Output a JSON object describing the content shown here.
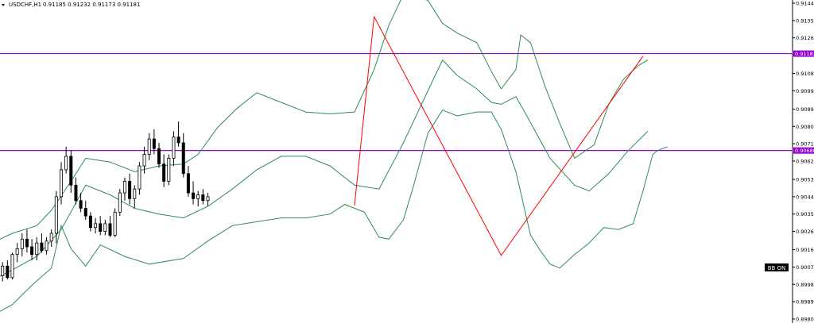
{
  "header": {
    "symbol": "USDCHF,H1",
    "ohlc": "0.91185 0.91232 0.91173 0.91181"
  },
  "bb_label": "BB ON",
  "colors": {
    "background": "#ffffff",
    "bullish_body": "#ffffff",
    "bearish_body": "#000000",
    "wick": "#000000",
    "bollinger": "#2e8b57",
    "zigzag": "#ff0000",
    "horizontal_line": "#9400d3",
    "tag_bg": "#9400d3",
    "bb_bg": "#000000"
  },
  "chart_data": {
    "type": "candlestick",
    "symbol": "USDCHF",
    "timeframe": "H1",
    "ylim": [
      0.89805,
      0.91445
    ],
    "ytick_labels": [
      "0.91445",
      "0.91355",
      "0.91265",
      "0.91180",
      "0.91080",
      "0.90990",
      "0.90895",
      "0.90805",
      "0.90715",
      "0.90625",
      "0.90530",
      "0.90440",
      "0.90350",
      "0.90260",
      "0.90165",
      "0.90075",
      "0.89985",
      "0.89895",
      "0.89805"
    ],
    "horizontal_lines": [
      {
        "price": 0.91183,
        "label": "0.91183"
      },
      {
        "price": 0.9068,
        "label": "0.90680"
      }
    ],
    "zigzag": [
      {
        "x": 0,
        "y": 0.90395
      },
      {
        "x": 4,
        "y": 0.91375
      },
      {
        "x": 30,
        "y": 0.90135
      },
      {
        "x": 59,
        "y": 0.9117
      }
    ],
    "bollinger": {
      "upper": [
        [
          -100,
          0.9014
        ],
        [
          -93,
          0.9017
        ],
        [
          -85,
          0.9016
        ],
        [
          -80,
          0.9015
        ],
        [
          -75,
          0.9019
        ],
        [
          -70,
          0.9025
        ],
        [
          -65,
          0.9029
        ],
        [
          -62,
          0.9037
        ],
        [
          -58,
          0.9052
        ],
        [
          -55,
          0.9064
        ],
        [
          -50,
          0.9062
        ],
        [
          -45,
          0.9057
        ],
        [
          -40,
          0.906
        ],
        [
          -35,
          0.9061
        ],
        [
          -32,
          0.9066
        ],
        [
          -28,
          0.908
        ],
        [
          -24,
          0.909
        ],
        [
          -20,
          0.9098
        ],
        [
          -16,
          0.9094
        ],
        [
          -10,
          0.9088
        ],
        [
          -5,
          0.9087
        ],
        [
          0,
          0.9088
        ],
        [
          4,
          0.911
        ],
        [
          7,
          0.9133
        ],
        [
          10,
          0.9149
        ],
        [
          15,
          0.9146
        ],
        [
          18,
          0.9134
        ],
        [
          21,
          0.9129
        ],
        [
          25,
          0.9124
        ],
        [
          28,
          0.9109
        ],
        [
          30,
          0.91
        ],
        [
          33,
          0.911
        ],
        [
          34,
          0.9128
        ],
        [
          36,
          0.9124
        ],
        [
          39,
          0.9101
        ],
        [
          42,
          0.9082
        ],
        [
          45,
          0.9064
        ],
        [
          49,
          0.9071
        ],
        [
          52,
          0.9092
        ],
        [
          55,
          0.9105
        ],
        [
          58,
          0.9112
        ],
        [
          60,
          0.9115
        ]
      ],
      "middle": [
        [
          -100,
          0.9001
        ],
        [
          -93,
          0.8999
        ],
        [
          -85,
          0.89945
        ],
        [
          -80,
          0.8996
        ],
        [
          -75,
          0.89995
        ],
        [
          -70,
          0.9006
        ],
        [
          -65,
          0.9013
        ],
        [
          -60,
          0.9027
        ],
        [
          -55,
          0.905
        ],
        [
          -50,
          0.9045
        ],
        [
          -45,
          0.9038
        ],
        [
          -40,
          0.9035
        ],
        [
          -35,
          0.9033
        ],
        [
          -30,
          0.9039
        ],
        [
          -25,
          0.9048
        ],
        [
          -20,
          0.9058
        ],
        [
          -15,
          0.9065
        ],
        [
          -10,
          0.9065
        ],
        [
          -5,
          0.906
        ],
        [
          0,
          0.905
        ],
        [
          5,
          0.9048
        ],
        [
          10,
          0.9072
        ],
        [
          15,
          0.9099
        ],
        [
          18,
          0.9115
        ],
        [
          21,
          0.9107
        ],
        [
          25,
          0.91
        ],
        [
          28,
          0.9093
        ],
        [
          30,
          0.9092
        ],
        [
          33,
          0.9096
        ],
        [
          35,
          0.9087
        ],
        [
          40,
          0.9064
        ],
        [
          45,
          0.905
        ],
        [
          48,
          0.9047
        ],
        [
          52,
          0.9056
        ],
        [
          56,
          0.9068
        ],
        [
          60,
          0.9078
        ]
      ],
      "lower": [
        [
          -100,
          0.8978
        ],
        [
          -93,
          0.8983
        ],
        [
          -85,
          0.8978
        ],
        [
          -80,
          0.8977
        ],
        [
          -75,
          0.8981
        ],
        [
          -70,
          0.8988
        ],
        [
          -66,
          0.8998
        ],
        [
          -62,
          0.9007
        ],
        [
          -60,
          0.9029
        ],
        [
          -58,
          0.9017
        ],
        [
          -55,
          0.9008
        ],
        [
          -52,
          0.9019
        ],
        [
          -47,
          0.9013
        ],
        [
          -42,
          0.9009
        ],
        [
          -35,
          0.9012
        ],
        [
          -30,
          0.9021
        ],
        [
          -25,
          0.9029
        ],
        [
          -20,
          0.9031
        ],
        [
          -15,
          0.9033
        ],
        [
          -10,
          0.9033
        ],
        [
          -5,
          0.9035
        ],
        [
          -2,
          0.904
        ],
        [
          2,
          0.9036
        ],
        [
          5,
          0.9023
        ],
        [
          7,
          0.9022
        ],
        [
          10,
          0.9032
        ],
        [
          12,
          0.9049
        ],
        [
          15,
          0.9077
        ],
        [
          18,
          0.9089
        ],
        [
          21,
          0.9086
        ],
        [
          25,
          0.9088
        ],
        [
          28,
          0.9088
        ],
        [
          30,
          0.9079
        ],
        [
          33,
          0.9057
        ],
        [
          36,
          0.9024
        ],
        [
          38,
          0.9016
        ],
        [
          40,
          0.9009
        ],
        [
          42,
          0.9007
        ],
        [
          45,
          0.9014
        ],
        [
          48,
          0.902
        ],
        [
          51,
          0.9028
        ],
        [
          54,
          0.9027
        ],
        [
          57,
          0.903
        ],
        [
          59,
          0.9047
        ],
        [
          61,
          0.9066
        ],
        [
          62,
          0.9068
        ],
        [
          64,
          0.907
        ]
      ]
    },
    "candles": [
      [
        -100,
        0.9004,
        0.90045,
        0.8999,
        0.9
      ],
      [
        -99,
        0.9,
        0.9005,
        0.89985,
        0.9004
      ],
      [
        -98,
        0.9004,
        0.901,
        0.9003,
        0.9009
      ],
      [
        -97,
        0.9009,
        0.9012,
        0.9,
        0.9001
      ],
      [
        -96,
        0.9001,
        0.9003,
        0.8994,
        0.8996
      ],
      [
        -95,
        0.8996,
        0.9006,
        0.8995,
        0.9005
      ],
      [
        -94,
        0.9005,
        0.9009,
        0.9,
        0.9002
      ],
      [
        -93,
        0.9002,
        0.9008,
        0.8999,
        0.9007
      ],
      [
        -92,
        0.9007,
        0.9014,
        0.9005,
        0.9012
      ],
      [
        -91,
        0.9012,
        0.9015,
        0.9007,
        0.9009
      ],
      [
        -90,
        0.9009,
        0.901,
        0.8999,
        0.9
      ],
      [
        -89,
        0.9,
        0.9004,
        0.8994,
        0.8995
      ],
      [
        -88,
        0.8995,
        0.8999,
        0.8988,
        0.8991
      ],
      [
        -87,
        0.8991,
        0.8996,
        0.8989,
        0.8994
      ],
      [
        -86,
        0.8994,
        0.8998,
        0.8991,
        0.8996
      ],
      [
        -85,
        0.8996,
        0.9,
        0.8994,
        0.8999
      ],
      [
        -84,
        0.8999,
        0.9001,
        0.8996,
        0.8997
      ],
      [
        -83,
        0.8997,
        0.9,
        0.8994,
        0.8998
      ],
      [
        -82,
        0.8998,
        0.9001,
        0.8995,
        0.8996
      ],
      [
        -81,
        0.8996,
        0.9005,
        0.8995,
        0.9004
      ],
      [
        -80,
        0.9004,
        0.9009,
        0.8999,
        0.9001
      ],
      [
        -79,
        0.9001,
        0.9003,
        0.8994,
        0.8995
      ],
      [
        -78,
        0.8995,
        0.8998,
        0.8987,
        0.8989
      ],
      [
        -77,
        0.8989,
        0.8993,
        0.8986,
        0.899
      ],
      [
        -76,
        0.899,
        0.8994,
        0.8987,
        0.8991
      ],
      [
        -75,
        0.8991,
        0.8995,
        0.899,
        0.8994
      ],
      [
        -74,
        0.8994,
        0.8999,
        0.8991,
        0.8998
      ],
      [
        -73,
        0.8998,
        0.9004,
        0.8997,
        0.9003
      ],
      [
        -72,
        0.9003,
        0.901,
        0.9,
        0.9008
      ],
      [
        -71,
        0.9008,
        0.9011,
        0.9001,
        0.9002
      ],
      [
        -70,
        0.9002,
        0.9015,
        0.9001,
        0.9014
      ],
      [
        -69,
        0.9014,
        0.902,
        0.901,
        0.9017
      ],
      [
        -68,
        0.9017,
        0.9025,
        0.9013,
        0.9022
      ],
      [
        -67,
        0.9022,
        0.9027,
        0.9015,
        0.9018
      ],
      [
        -66,
        0.9018,
        0.9022,
        0.9011,
        0.9014
      ],
      [
        -65,
        0.9014,
        0.9023,
        0.9011,
        0.902
      ],
      [
        -64,
        0.902,
        0.9025,
        0.9015,
        0.9016
      ],
      [
        -63,
        0.9016,
        0.9023,
        0.9014,
        0.9021
      ],
      [
        -62,
        0.9021,
        0.9027,
        0.9018,
        0.9025
      ],
      [
        -61,
        0.9025,
        0.9047,
        0.902,
        0.9044
      ],
      [
        -60,
        0.9044,
        0.9062,
        0.904,
        0.9058
      ],
      [
        -59,
        0.9058,
        0.907,
        0.9056,
        0.9065
      ],
      [
        -58,
        0.9065,
        0.9068,
        0.9046,
        0.905
      ],
      [
        -57,
        0.905,
        0.9054,
        0.904,
        0.9042
      ],
      [
        -56,
        0.9042,
        0.9046,
        0.9036,
        0.9038
      ],
      [
        -55,
        0.9038,
        0.9042,
        0.9032,
        0.9034
      ],
      [
        -54,
        0.9034,
        0.9036,
        0.9026,
        0.9028
      ],
      [
        -53,
        0.9028,
        0.9033,
        0.9025,
        0.903
      ],
      [
        -52,
        0.903,
        0.9034,
        0.9024,
        0.9026
      ],
      [
        -51,
        0.9026,
        0.9032,
        0.9024,
        0.903
      ],
      [
        -50,
        0.903,
        0.9034,
        0.9023,
        0.9024
      ],
      [
        -49,
        0.9024,
        0.9038,
        0.9023,
        0.9036
      ],
      [
        -48,
        0.9036,
        0.9048,
        0.9034,
        0.9046
      ],
      [
        -47,
        0.9046,
        0.9054,
        0.9042,
        0.9052
      ],
      [
        -46,
        0.9052,
        0.9056,
        0.904,
        0.9043
      ],
      [
        -45,
        0.9043,
        0.905,
        0.9038,
        0.9048
      ],
      [
        -44,
        0.9048,
        0.9062,
        0.9045,
        0.906
      ],
      [
        -43,
        0.906,
        0.907,
        0.9056,
        0.9066
      ],
      [
        -42,
        0.9066,
        0.9077,
        0.9063,
        0.9074
      ],
      [
        -41,
        0.9074,
        0.9079,
        0.9066,
        0.9069
      ],
      [
        -40,
        0.9069,
        0.9072,
        0.9059,
        0.9061
      ],
      [
        -39,
        0.9061,
        0.9066,
        0.9049,
        0.9052
      ],
      [
        -38,
        0.9052,
        0.9066,
        0.905,
        0.9064
      ],
      [
        -37,
        0.9064,
        0.9078,
        0.906,
        0.9075
      ],
      [
        -36,
        0.9075,
        0.9083,
        0.907,
        0.9072
      ],
      [
        -35,
        0.9072,
        0.9077,
        0.9054,
        0.9056
      ],
      [
        -34,
        0.9056,
        0.906,
        0.9044,
        0.9046
      ],
      [
        -33,
        0.9046,
        0.9052,
        0.904,
        0.9043
      ],
      [
        -32,
        0.9043,
        0.9047,
        0.9039,
        0.9045
      ],
      [
        -31,
        0.9045,
        0.9048,
        0.904,
        0.9042
      ],
      [
        -30,
        0.9042,
        0.9046,
        0.9039,
        0.9044
      ]
    ]
  }
}
